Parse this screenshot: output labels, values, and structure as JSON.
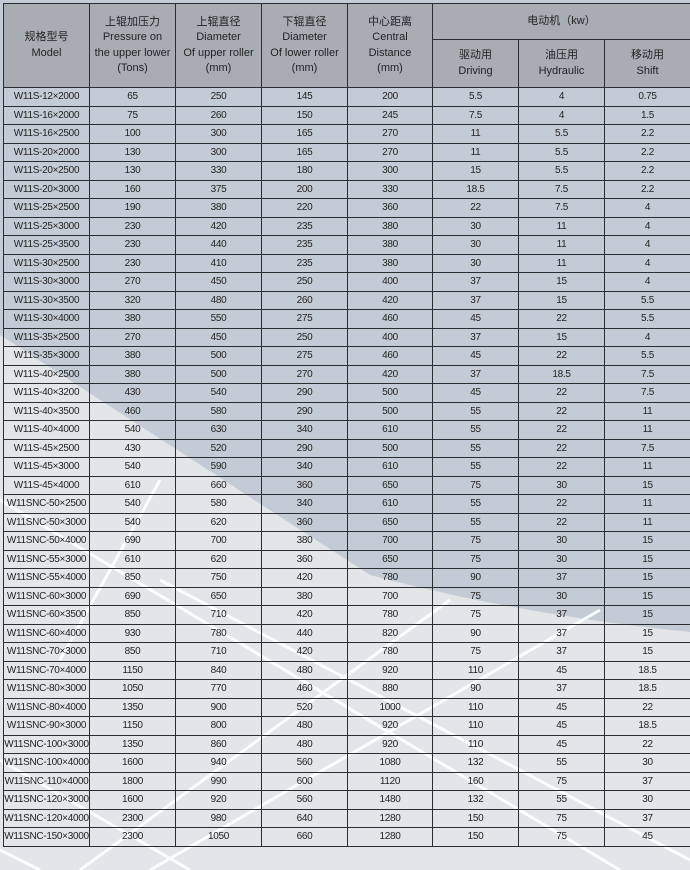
{
  "header": {
    "model": [
      "规格型号",
      "Model"
    ],
    "pressure": [
      "上辊加压力",
      "Pressure on",
      "the upper lower",
      "(Tons)"
    ],
    "upper_diameter": [
      "上辊直径",
      "Diameter",
      "Of upper roller",
      "(mm)"
    ],
    "lower_diameter": [
      "下辊直径",
      "Diameter",
      "Of lower roller",
      "(mm)"
    ],
    "center_distance": [
      "中心距离",
      "Central",
      "Distance",
      "(mm)"
    ],
    "motor": "电动机（kw）",
    "driving": [
      "驱动用",
      "Driving"
    ],
    "hydraulic": [
      "油压用",
      "Hydraulic"
    ],
    "shift": [
      "移动用",
      "Shift"
    ]
  },
  "rows": [
    [
      "W11S-12×2000",
      "65",
      "250",
      "145",
      "200",
      "5.5",
      "4",
      "0.75"
    ],
    [
      "W11S-16×2000",
      "75",
      "260",
      "150",
      "245",
      "7.5",
      "4",
      "1.5"
    ],
    [
      "W11S-16×2500",
      "100",
      "300",
      "165",
      "270",
      "11",
      "5.5",
      "2.2"
    ],
    [
      "W11S-20×2000",
      "130",
      "300",
      "165",
      "270",
      "11",
      "5.5",
      "2.2"
    ],
    [
      "W11S-20×2500",
      "130",
      "330",
      "180",
      "300",
      "15",
      "5.5",
      "2.2"
    ],
    [
      "W11S-20×3000",
      "160",
      "375",
      "200",
      "330",
      "18.5",
      "7.5",
      "2.2"
    ],
    [
      "W11S-25×2500",
      "190",
      "380",
      "220",
      "360",
      "22",
      "7.5",
      "4"
    ],
    [
      "W11S-25×3000",
      "230",
      "420",
      "235",
      "380",
      "30",
      "11",
      "4"
    ],
    [
      "W11S-25×3500",
      "230",
      "440",
      "235",
      "380",
      "30",
      "11",
      "4"
    ],
    [
      "W11S-30×2500",
      "230",
      "410",
      "235",
      "380",
      "30",
      "11",
      "4"
    ],
    [
      "W11S-30×3000",
      "270",
      "450",
      "250",
      "400",
      "37",
      "15",
      "4"
    ],
    [
      "W11S-30×3500",
      "320",
      "480",
      "260",
      "420",
      "37",
      "15",
      "5.5"
    ],
    [
      "W11S-30×4000",
      "380",
      "550",
      "275",
      "460",
      "45",
      "22",
      "5.5"
    ],
    [
      "W11S-35×2500",
      "270",
      "450",
      "250",
      "400",
      "37",
      "15",
      "4"
    ],
    [
      "W11S-35×3000",
      "380",
      "500",
      "275",
      "460",
      "45",
      "22",
      "5.5"
    ],
    [
      "W11S-40×2500",
      "380",
      "500",
      "270",
      "420",
      "37",
      "18.5",
      "7.5"
    ],
    [
      "W11S-40×3200",
      "430",
      "540",
      "290",
      "500",
      "45",
      "22",
      "7.5"
    ],
    [
      "W11S-40×3500",
      "460",
      "580",
      "290",
      "500",
      "55",
      "22",
      "11"
    ],
    [
      "W11S-40×4000",
      "540",
      "630",
      "340",
      "610",
      "55",
      "22",
      "11"
    ],
    [
      "W11S-45×2500",
      "430",
      "520",
      "290",
      "500",
      "55",
      "22",
      "7.5"
    ],
    [
      "W11S-45×3000",
      "540",
      "590",
      "340",
      "610",
      "55",
      "22",
      "11"
    ],
    [
      "W11S-45×4000",
      "610",
      "660",
      "360",
      "650",
      "75",
      "30",
      "15"
    ],
    [
      "W11SNC-50×2500",
      "540",
      "580",
      "340",
      "610",
      "55",
      "22",
      "11"
    ],
    [
      "W11SNC-50×3000",
      "540",
      "620",
      "360",
      "650",
      "55",
      "22",
      "11"
    ],
    [
      "W11SNC-50×4000",
      "690",
      "700",
      "380",
      "700",
      "75",
      "30",
      "15"
    ],
    [
      "W11SNC-55×3000",
      "610",
      "620",
      "360",
      "650",
      "75",
      "30",
      "15"
    ],
    [
      "W11SNC-55×4000",
      "850",
      "750",
      "420",
      "780",
      "90",
      "37",
      "15"
    ],
    [
      "W11SNC-60×3000",
      "690",
      "650",
      "380",
      "700",
      "75",
      "30",
      "15"
    ],
    [
      "W11SNC-60×3500",
      "850",
      "710",
      "420",
      "780",
      "75",
      "37",
      "15"
    ],
    [
      "W11SNC-60×4000",
      "930",
      "780",
      "440",
      "820",
      "90",
      "37",
      "15"
    ],
    [
      "W11SNC-70×3000",
      "850",
      "710",
      "420",
      "780",
      "75",
      "37",
      "15"
    ],
    [
      "W11SNC-70×4000",
      "1150",
      "840",
      "480",
      "920",
      "110",
      "45",
      "18.5"
    ],
    [
      "W11SNC-80×3000",
      "1050",
      "770",
      "460",
      "880",
      "90",
      "37",
      "18.5"
    ],
    [
      "W11SNC-80×4000",
      "1350",
      "900",
      "520",
      "1000",
      "110",
      "45",
      "22"
    ],
    [
      "W11SNC-90×3000",
      "1150",
      "800",
      "480",
      "920",
      "110",
      "45",
      "18.5"
    ],
    [
      "W11SNC-100×3000",
      "1350",
      "860",
      "480",
      "920",
      "110",
      "45",
      "22"
    ],
    [
      "W11SNC-100×4000",
      "1600",
      "940",
      "560",
      "1080",
      "132",
      "55",
      "30"
    ],
    [
      "W11SNC-110×4000",
      "1800",
      "990",
      "600",
      "1120",
      "160",
      "75",
      "37"
    ],
    [
      "W11SNC-120×3000",
      "1600",
      "920",
      "560",
      "1480",
      "132",
      "55",
      "30"
    ],
    [
      "W11SNC-120×4000",
      "2300",
      "980",
      "640",
      "1280",
      "150",
      "75",
      "37"
    ],
    [
      "W11SNC-150×3000",
      "2300",
      "1050",
      "660",
      "1280",
      "150",
      "75",
      "45"
    ]
  ]
}
